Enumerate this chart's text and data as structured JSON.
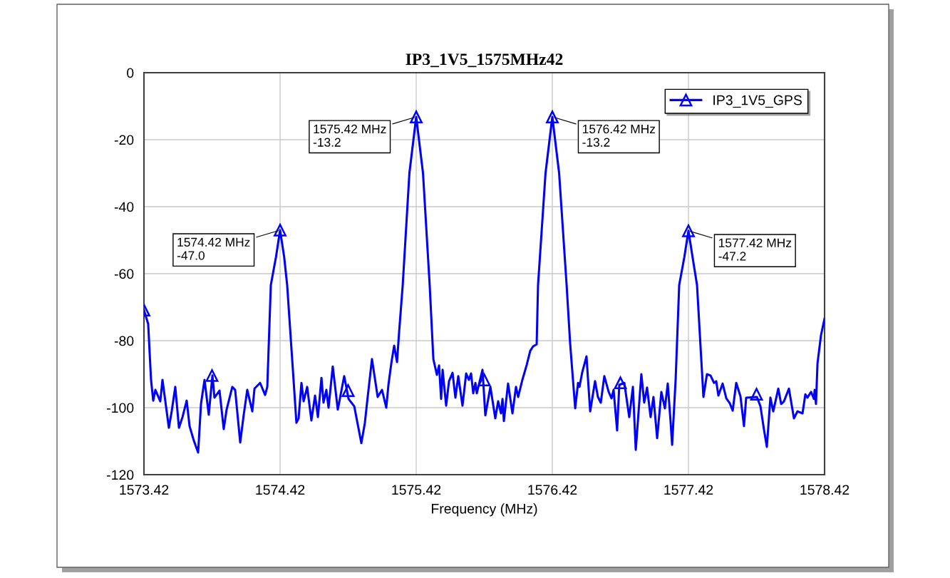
{
  "chart_data": {
    "type": "line",
    "title": "IP3_1V5_1575MHz42",
    "xlabel": "Frequency (MHz)",
    "xlim": [
      1573.42,
      1578.42
    ],
    "xticks": [
      1573.42,
      1574.42,
      1575.42,
      1576.42,
      1577.42,
      1578.42
    ],
    "ylim": [
      -120,
      0
    ],
    "yticks": [
      -120,
      -100,
      -80,
      -60,
      -40,
      -20,
      0
    ],
    "grid": true,
    "legend": "top right",
    "marker": "triangle",
    "line_style": "solid",
    "series": [
      {
        "type": "scatter",
        "color": "#0000ff",
        "x": [
          1573.42,
          1573.92,
          1574.42,
          1574.92,
          1575.42,
          1575.92,
          1576.42,
          1576.92,
          1577.42,
          1577.92
        ],
        "values": [
          -70.9,
          -90.4,
          -47.0,
          -94.9,
          -13.2,
          -91.7,
          -13.2,
          -92.6,
          -47.2,
          -96.0
        ]
      },
      {
        "name": "IP3_1V5_GPS",
        "color": "#0000ff",
        "marker": "none",
        "x": [
          1573.42,
          1573.451,
          1573.472,
          1573.488,
          1573.504,
          1573.54,
          1573.556,
          1573.603,
          1573.624,
          1573.65,
          1573.677,
          1573.703,
          1573.734,
          1573.755,
          1573.786,
          1573.818,
          1573.839,
          1573.865,
          1573.896,
          1573.923,
          1573.938,
          1573.975,
          1574.006,
          1574.027,
          1574.069,
          1574.09,
          1574.127,
          1574.153,
          1574.179,
          1574.216,
          1574.232,
          1574.273,
          1574.31,
          1574.326,
          1574.352,
          1574.39,
          1574.42,
          1574.45,
          1574.472,
          1574.519,
          1574.54,
          1574.556,
          1574.577,
          1574.593,
          1574.619,
          1574.65,
          1574.677,
          1574.698,
          1574.724,
          1574.739,
          1574.76,
          1574.776,
          1574.807,
          1574.844,
          1574.891,
          1574.923,
          1574.965,
          1575.017,
          1575.043,
          1575.059,
          1575.095,
          1575.137,
          1575.169,
          1575.2,
          1575.216,
          1575.237,
          1575.258,
          1575.279,
          1575.294,
          1575.321,
          1575.37,
          1575.42,
          1575.47,
          1575.519,
          1575.546,
          1575.572,
          1575.588,
          1575.603,
          1575.614,
          1575.64,
          1575.661,
          1575.687,
          1575.708,
          1575.729,
          1575.76,
          1575.787,
          1575.807,
          1575.823,
          1575.839,
          1575.855,
          1575.865,
          1575.907,
          1575.928,
          1575.965,
          1576.001,
          1576.022,
          1576.043,
          1576.054,
          1576.064,
          1576.095,
          1576.127,
          1576.153,
          1576.169,
          1576.2,
          1576.232,
          1576.258,
          1576.279,
          1576.305,
          1576.315,
          1576.37,
          1576.42,
          1576.47,
          1576.525,
          1576.551,
          1576.588,
          1576.609,
          1576.619,
          1576.64,
          1576.671,
          1576.698,
          1576.734,
          1576.755,
          1576.776,
          1576.802,
          1576.834,
          1576.855,
          1576.87,
          1576.896,
          1576.912,
          1576.949,
          1576.985,
          1577.012,
          1577.033,
          1577.074,
          1577.095,
          1577.116,
          1577.142,
          1577.163,
          1577.19,
          1577.221,
          1577.247,
          1577.268,
          1577.289,
          1577.3,
          1577.326,
          1577.352,
          1577.39,
          1577.42,
          1577.45,
          1577.483,
          1577.53,
          1577.556,
          1577.582,
          1577.608,
          1577.624,
          1577.64,
          1577.671,
          1577.698,
          1577.724,
          1577.745,
          1577.771,
          1577.802,
          1577.828,
          1577.844,
          1577.923,
          1577.949,
          1577.975,
          1577.996,
          1578.022,
          1578.043,
          1578.08,
          1578.101,
          1578.122,
          1578.158,
          1578.195,
          1578.221,
          1578.258,
          1578.279,
          1578.294,
          1578.321,
          1578.342,
          1578.347,
          1578.357,
          1578.368,
          1578.394,
          1578.42
        ],
        "values": [
          -70.9,
          -75.0,
          -91.7,
          -97.9,
          -94.7,
          -98.1,
          -91.7,
          -106.0,
          -101.0,
          -93.8,
          -106.0,
          -102.8,
          -97.9,
          -105.5,
          -109.8,
          -113.4,
          -98.9,
          -91.7,
          -102.1,
          -90.4,
          -97.0,
          -94.9,
          -106.4,
          -100.6,
          -93.8,
          -94.7,
          -110.4,
          -102.1,
          -94.7,
          -101.1,
          -94.3,
          -92.6,
          -96.2,
          -93.8,
          -63.4,
          -55.0,
          -47.0,
          -55.0,
          -63.4,
          -91.7,
          -104.5,
          -103.2,
          -92.6,
          -98.1,
          -93.8,
          -103.8,
          -96.4,
          -102.8,
          -91.1,
          -98.5,
          -94.7,
          -100.0,
          -87.7,
          -100.6,
          -90.6,
          -97.4,
          -99.6,
          -110.6,
          -104.5,
          -98.5,
          -85.5,
          -96.8,
          -94.7,
          -100.0,
          -93.2,
          -86.8,
          -81.5,
          -86.4,
          -77.7,
          -63.4,
          -30.0,
          -13.2,
          -30.0,
          -63.4,
          -85.5,
          -90.2,
          -87.4,
          -97.4,
          -88.7,
          -99.4,
          -92.1,
          -89.6,
          -97.0,
          -90.6,
          -99.4,
          -89.8,
          -91.7,
          -89.8,
          -95.7,
          -92.6,
          -95.7,
          -88.7,
          -102.3,
          -93.8,
          -103.2,
          -98.1,
          -101.7,
          -97.4,
          -104.0,
          -92.8,
          -101.7,
          -93.8,
          -96.8,
          -91.7,
          -87.2,
          -83.0,
          -81.7,
          -81.1,
          -63.4,
          -30.0,
          -13.2,
          -30.0,
          -63.4,
          -80.9,
          -100.2,
          -92.6,
          -93.8,
          -89.4,
          -84.7,
          -101.1,
          -92.1,
          -96.8,
          -98.5,
          -90.6,
          -95.3,
          -97.2,
          -94.7,
          -106.8,
          -93.2,
          -92.6,
          -102.8,
          -93.8,
          -112.6,
          -90.0,
          -98.5,
          -94.0,
          -102.8,
          -96.8,
          -109.1,
          -95.3,
          -100.2,
          -92.8,
          -104.3,
          -111.1,
          -91.5,
          -63.4,
          -55.0,
          -47.2,
          -55.0,
          -63.4,
          -96.8,
          -90.0,
          -90.4,
          -92.6,
          -92.1,
          -96.4,
          -92.8,
          -97.2,
          -98.7,
          -100.9,
          -92.6,
          -96.6,
          -105.5,
          -97.0,
          -96.8,
          -99.6,
          -106.6,
          -111.7,
          -97.0,
          -101.1,
          -94.3,
          -98.9,
          -98.1,
          -94.3,
          -103.2,
          -101.1,
          -101.7,
          -96.0,
          -97.0,
          -95.3,
          -97.4,
          -94.7,
          -98.9,
          -86.8,
          -78.3,
          -73.4
        ]
      }
    ],
    "annotations": [
      {
        "text": "1574.42 MHz\n-47.0",
        "x": 1574.42,
        "y": -47.0
      },
      {
        "text": "1575.42 MHz\n-13.2",
        "x": 1575.42,
        "y": -13.2
      },
      {
        "text": "1576.42 MHz\n-13.2",
        "x": 1576.42,
        "y": -13.2
      },
      {
        "text": "1577.42 MHz\n-47.2",
        "x": 1577.42,
        "y": -47.2
      }
    ]
  }
}
